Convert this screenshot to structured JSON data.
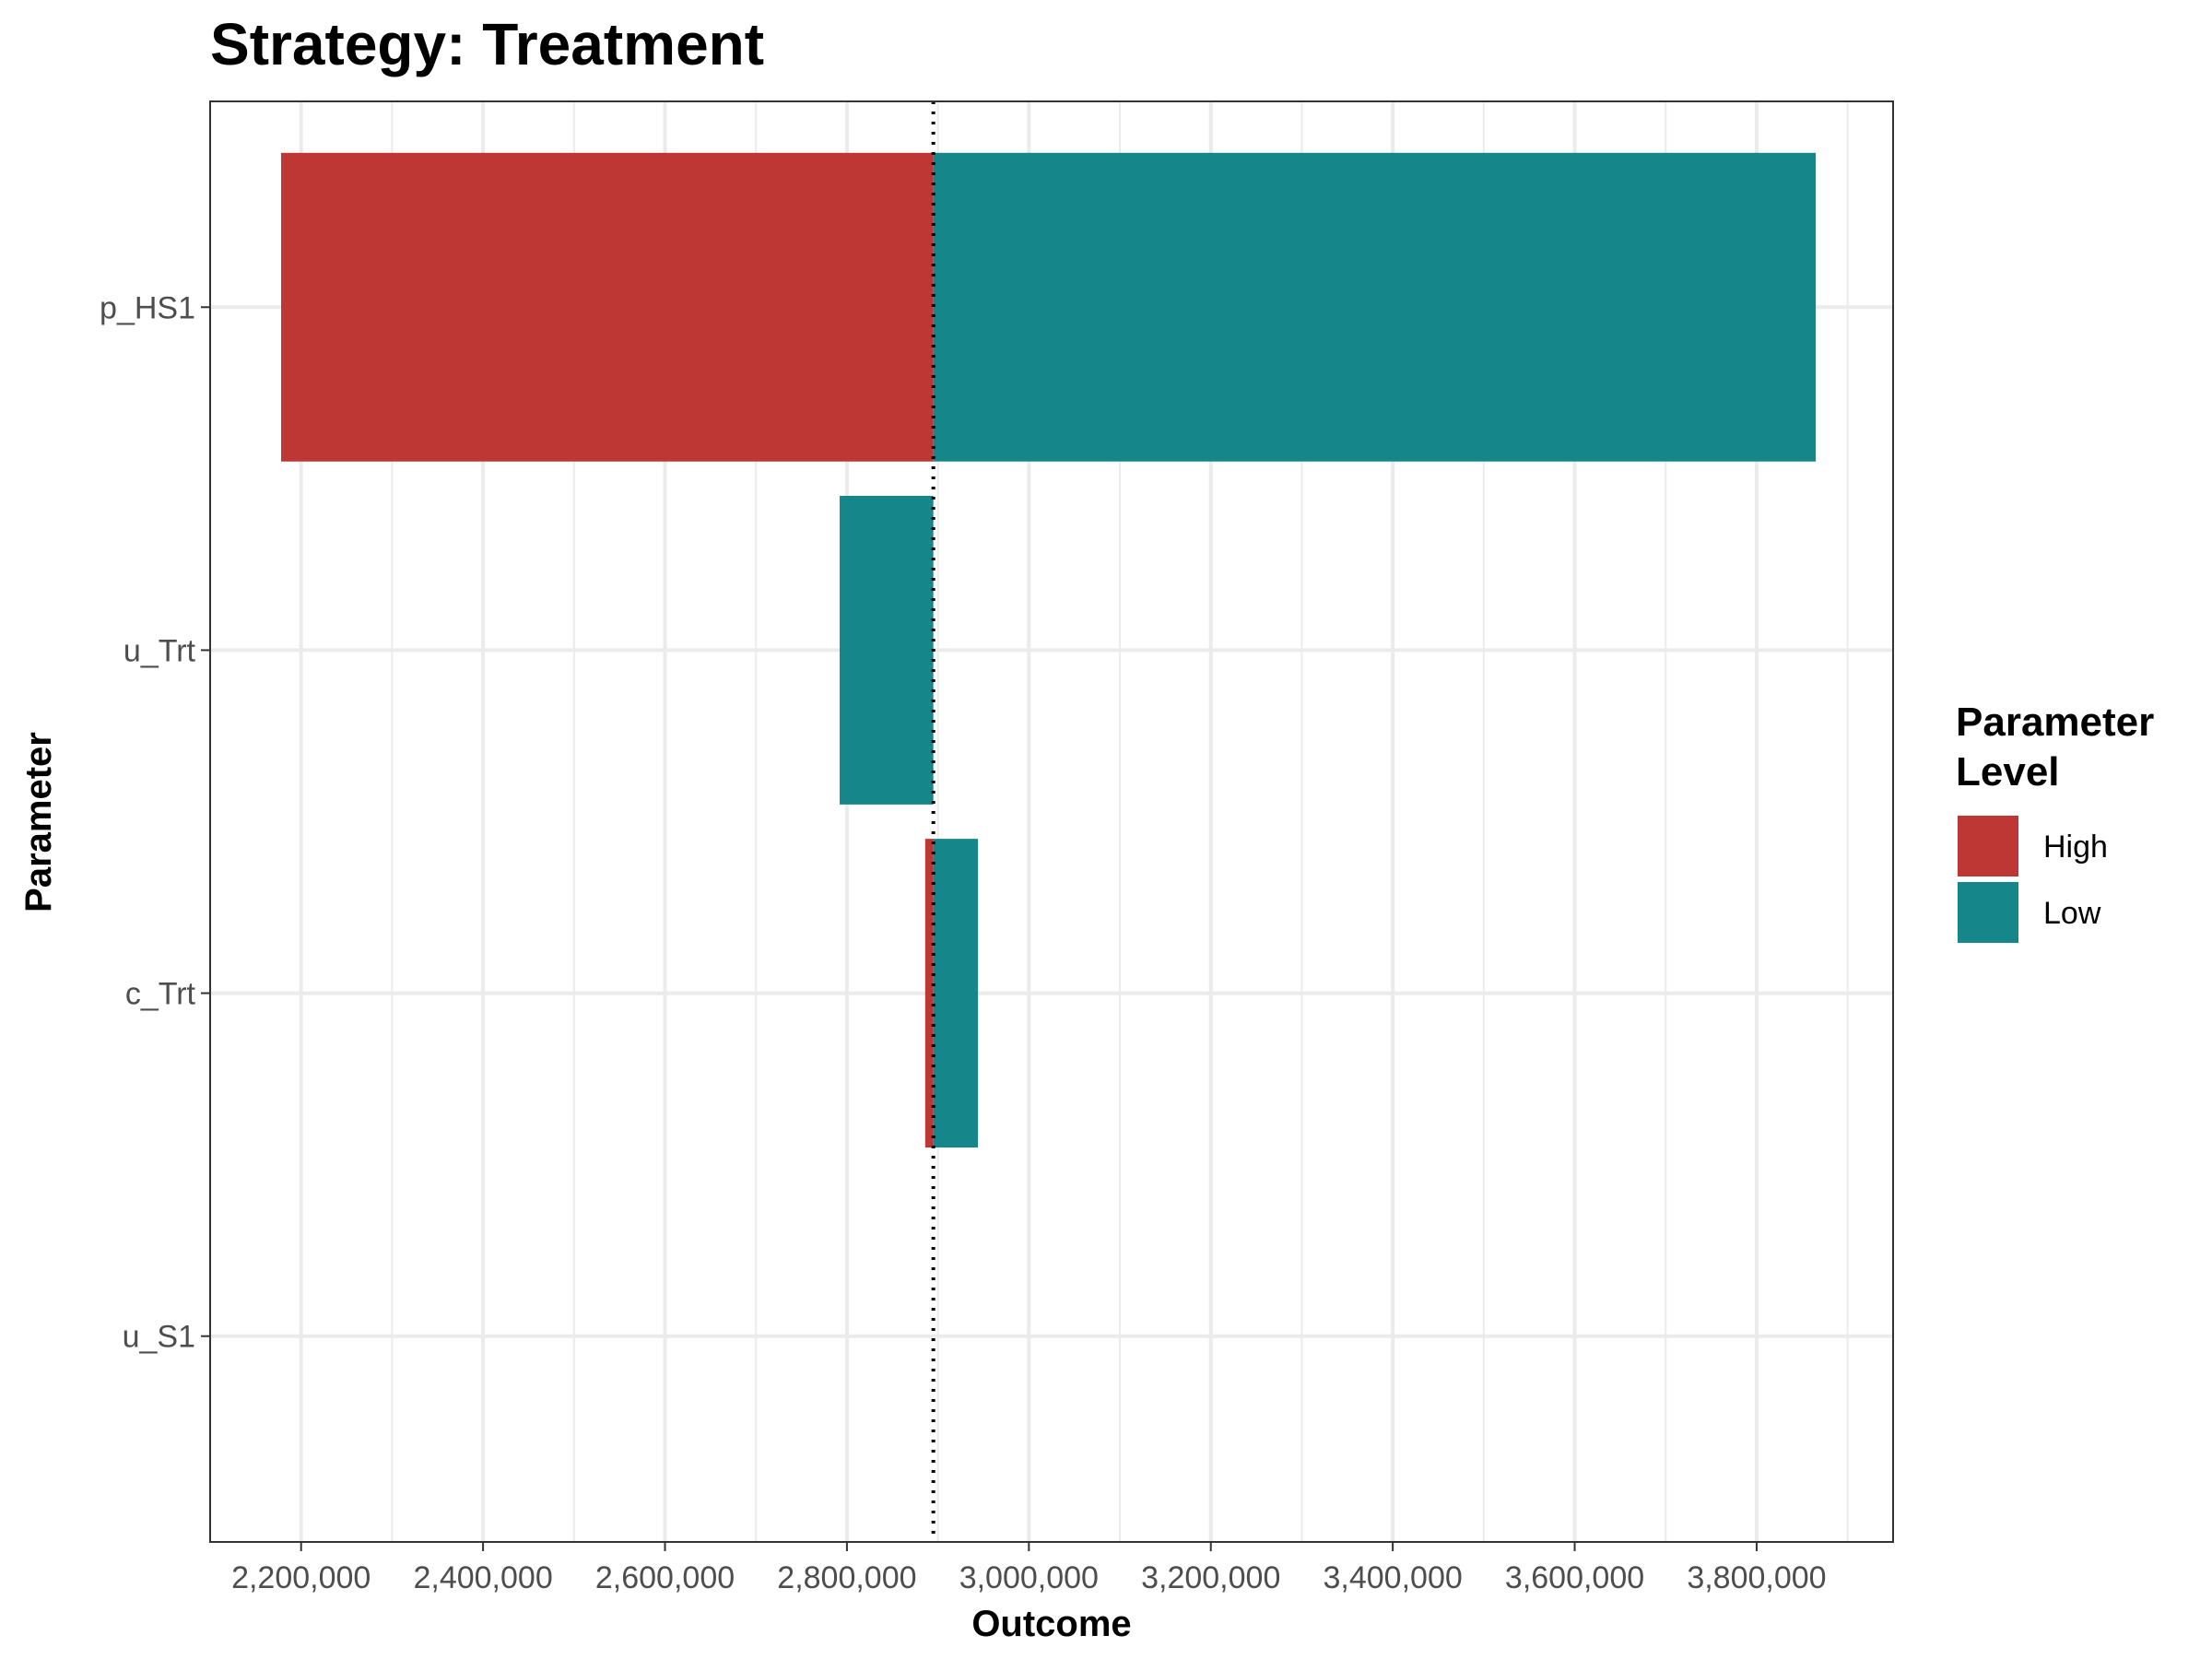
{
  "chart_data": {
    "type": "bar",
    "orientation": "horizontal",
    "title": "Strategy: Treatment",
    "xlabel": "Outcome",
    "ylabel": "Parameter",
    "base_value": 2895000,
    "xlim": [
      2100000,
      3950000
    ],
    "x_ticks": [
      2200000,
      2400000,
      2600000,
      2800000,
      3000000,
      3200000,
      3400000,
      3600000,
      3800000
    ],
    "x_tick_labels": [
      "2,200,000",
      "2,400,000",
      "2,600,000",
      "2,800,000",
      "3,000,000",
      "3,200,000",
      "3,400,000",
      "3,600,000",
      "3,800,000"
    ],
    "categories": [
      "p_HS1",
      "u_Trt",
      "c_Trt",
      "u_S1"
    ],
    "series": [
      {
        "name": "High",
        "color": "#be3734",
        "values": [
          2178000,
          null,
          2886000,
          null
        ]
      },
      {
        "name": "Low",
        "color": "#15878b",
        "values": [
          3865000,
          2792000,
          2944000,
          null
        ]
      }
    ],
    "legend": {
      "title": "Parameter\nLevel",
      "title_lines": [
        "Parameter",
        "Level"
      ],
      "position": "right",
      "entries": [
        "High",
        "Low"
      ]
    },
    "reference_line": {
      "style": "dotted"
    },
    "grid": true
  }
}
